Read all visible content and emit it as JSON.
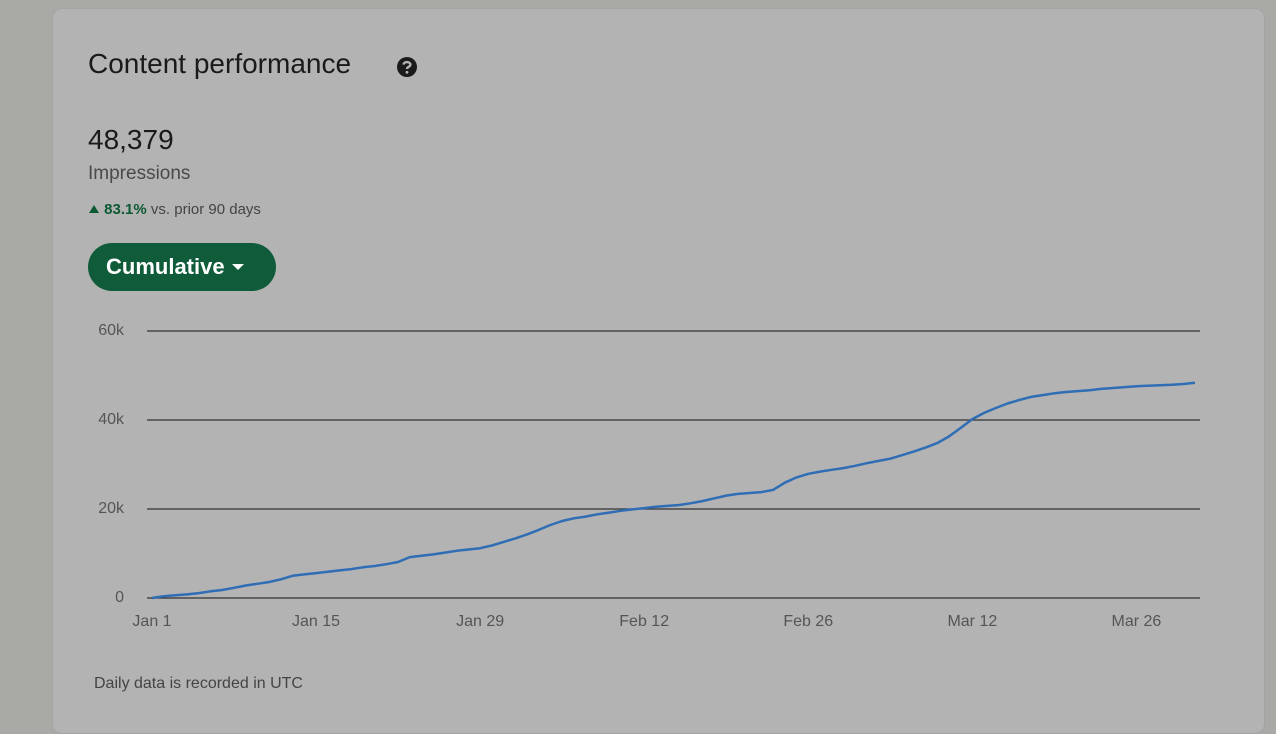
{
  "header": {
    "title": "Content performance"
  },
  "metric": {
    "value": "48,379",
    "label": "Impressions",
    "change": "83.1%",
    "change_note": "vs. prior 90 days"
  },
  "control": {
    "label": "Cumulative"
  },
  "chart_data": {
    "type": "line",
    "categories": [
      "Jan 1",
      null,
      null,
      null,
      null,
      null,
      null,
      null,
      null,
      null,
      null,
      null,
      null,
      null,
      "Jan 15",
      null,
      null,
      null,
      null,
      null,
      null,
      null,
      null,
      null,
      null,
      null,
      null,
      null,
      "Jan 29",
      null,
      null,
      null,
      null,
      null,
      null,
      null,
      null,
      null,
      null,
      null,
      null,
      null,
      "Feb 12",
      null,
      null,
      null,
      null,
      null,
      null,
      null,
      null,
      null,
      null,
      null,
      null,
      null,
      "Feb 26",
      null,
      null,
      null,
      null,
      null,
      null,
      null,
      null,
      null,
      null,
      null,
      null,
      null,
      "Mar 12",
      null,
      null,
      null,
      null,
      null,
      null,
      null,
      null,
      null,
      null,
      null,
      null,
      null,
      "Mar 26",
      null,
      null,
      null,
      null,
      null
    ],
    "series": [
      {
        "color": "#2f6db5",
        "values": [
          0,
          400,
          600,
          800,
          1100,
          1500,
          1800,
          2300,
          2800,
          3200,
          3600,
          4200,
          5000,
          5300,
          5600,
          5900,
          6200,
          6500,
          6900,
          7200,
          7600,
          8100,
          9200,
          9500,
          9800,
          10200,
          10600,
          10900,
          11200,
          11800,
          12600,
          13400,
          14300,
          15300,
          16400,
          17300,
          17900,
          18300,
          18800,
          19200,
          19600,
          19900,
          20200,
          20500,
          20700,
          20900,
          21300,
          21800,
          22400,
          23000,
          23400,
          23600,
          23800,
          24300,
          25900,
          27100,
          27900,
          28400,
          28800,
          29200,
          29700,
          30300,
          30800,
          31300,
          32100,
          32900,
          33800,
          34800,
          36300,
          38200,
          40200,
          41600,
          42700,
          43700,
          44500,
          45200,
          45600,
          46000,
          46300,
          46500,
          46700,
          47000,
          47200,
          47400,
          47600,
          47700,
          47800,
          47900,
          48100,
          48379
        ]
      }
    ],
    "ylim": [
      0,
      60000
    ],
    "yticks": [
      0,
      {
        "value": 20000,
        "label": "20k"
      },
      {
        "value": 40000,
        "label": "40k"
      },
      {
        "value": 60000,
        "label": "60k"
      }
    ],
    "grid": true
  },
  "footer": "Daily data is recorded in UTC"
}
